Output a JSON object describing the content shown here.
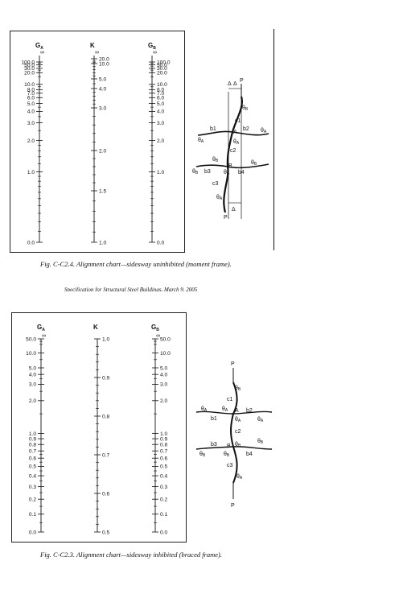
{
  "top_chart": {
    "axes": [
      {
        "symbol": "G",
        "subscript": "A",
        "top_symbol": "∞",
        "ticks": [
          {
            "label": "100.0",
            "v": 100
          },
          {
            "label": "50.0",
            "v": 50
          },
          {
            "label": "30.0",
            "v": 30
          },
          {
            "label": "20.0",
            "v": 20
          },
          {
            "label": "10.0",
            "v": 10
          },
          {
            "label": "8.0",
            "v": 8
          },
          {
            "label": "7.0",
            "v": 7
          },
          {
            "label": "6.0",
            "v": 6
          },
          {
            "label": "5.0",
            "v": 5
          },
          {
            "label": "4.0",
            "v": 4
          },
          {
            "label": "3.0",
            "v": 3
          },
          {
            "label": "2.0",
            "v": 2
          },
          {
            "label": "1.0",
            "v": 1
          },
          {
            "label": "0.0",
            "v": 0
          }
        ]
      },
      {
        "symbol": "K",
        "subscript": "",
        "top_symbol": "∞",
        "ticks": [
          {
            "label": "20.0",
            "v": 20
          },
          {
            "label": "10.0",
            "v": 10
          },
          {
            "label": "5.0",
            "v": 5
          },
          {
            "label": "4.0",
            "v": 4
          },
          {
            "label": "3.0",
            "v": 3
          },
          {
            "label": "2.0",
            "v": 2
          },
          {
            "label": "1.5",
            "v": 1.5
          },
          {
            "label": "1.0",
            "v": 1
          }
        ]
      },
      {
        "symbol": "G",
        "subscript": "B",
        "top_symbol": "∞",
        "ticks": [
          {
            "label": "100.0",
            "v": 100
          },
          {
            "label": "50.0",
            "v": 50
          },
          {
            "label": "30.0",
            "v": 30
          },
          {
            "label": "20.0",
            "v": 20
          },
          {
            "label": "10.0",
            "v": 10
          },
          {
            "label": "8.0",
            "v": 8
          },
          {
            "label": "7.0",
            "v": 7
          },
          {
            "label": "6.0",
            "v": 6
          },
          {
            "label": "5.0",
            "v": 5
          },
          {
            "label": "4.0",
            "v": 4
          },
          {
            "label": "3.0",
            "v": 3
          },
          {
            "label": "2.0",
            "v": 2
          },
          {
            "label": "1.0",
            "v": 1
          },
          {
            "label": "0.0",
            "v": 0
          }
        ]
      }
    ],
    "caption": "Fig.  C-C2.4.  Alignment chart—sidesway uninhibited (moment frame).",
    "footer_fragment": "Specification for Structural Steel Buildings, March 9, 2005"
  },
  "bottom_chart": {
    "axes": [
      {
        "symbol": "G",
        "subscript": "A",
        "top_symbol": "∞",
        "ticks": [
          {
            "label": "50.0",
            "v": 50
          },
          {
            "label": "10.0",
            "v": 10
          },
          {
            "label": "5.0",
            "v": 5
          },
          {
            "label": "4.0",
            "v": 4
          },
          {
            "label": "3.0",
            "v": 3
          },
          {
            "label": "2.0",
            "v": 2
          },
          {
            "label": "1.0",
            "v": 1
          },
          {
            "label": "0.9",
            "v": 0.9
          },
          {
            "label": "0.8",
            "v": 0.8
          },
          {
            "label": "0.7",
            "v": 0.7
          },
          {
            "label": "0.6",
            "v": 0.6
          },
          {
            "label": "0.5",
            "v": 0.5
          },
          {
            "label": "0.4",
            "v": 0.4
          },
          {
            "label": "0.3",
            "v": 0.3
          },
          {
            "label": "0.2",
            "v": 0.2
          },
          {
            "label": "0.1",
            "v": 0.1
          },
          {
            "label": "0.0",
            "v": 0
          }
        ]
      },
      {
        "symbol": "K",
        "subscript": "",
        "top_symbol": "",
        "ticks": [
          {
            "label": "1.0",
            "v": 1.0
          },
          {
            "label": "0.9",
            "v": 0.9
          },
          {
            "label": "0.8",
            "v": 0.8
          },
          {
            "label": "0.7",
            "v": 0.7
          },
          {
            "label": "0.6",
            "v": 0.6
          },
          {
            "label": "0.5",
            "v": 0.5
          }
        ]
      },
      {
        "symbol": "G",
        "subscript": "B",
        "top_symbol": "∞",
        "ticks": [
          {
            "label": "50.0",
            "v": 50
          },
          {
            "label": "10.0",
            "v": 10
          },
          {
            "label": "5.0",
            "v": 5
          },
          {
            "label": "4.0",
            "v": 4
          },
          {
            "label": "3.0",
            "v": 3
          },
          {
            "label": "2.0",
            "v": 2
          },
          {
            "label": "1.0",
            "v": 1
          },
          {
            "label": "0.9",
            "v": 0.9
          },
          {
            "label": "0.8",
            "v": 0.8
          },
          {
            "label": "0.7",
            "v": 0.7
          },
          {
            "label": "0.6",
            "v": 0.6
          },
          {
            "label": "0.5",
            "v": 0.5
          },
          {
            "label": "0.4",
            "v": 0.4
          },
          {
            "label": "0.3",
            "v": 0.3
          },
          {
            "label": "0.2",
            "v": 0.2
          },
          {
            "label": "0.1",
            "v": 0.1
          },
          {
            "label": "0.0",
            "v": 0
          }
        ]
      }
    ],
    "caption": "Fig.  C-C2.3.  Alignment chart—sidesway inhibited (braced frame)."
  },
  "frame_top": {
    "load": "P",
    "delta": "Δ",
    "theta": "θ",
    "columns": [
      "c1",
      "c2",
      "c3"
    ],
    "beams": [
      "b1",
      "b2",
      "b3",
      "b4"
    ],
    "joints": [
      "A",
      "B"
    ],
    "sub_a": "A",
    "sub_b": "B"
  },
  "frame_bottom": {
    "load": "P",
    "theta": "θ",
    "columns": [
      "c1",
      "c2",
      "c3"
    ],
    "beams": [
      "b1",
      "b2",
      "b3",
      "b4"
    ],
    "joints": [
      "A",
      "B"
    ],
    "sub_a": "A",
    "sub_b": "B"
  }
}
